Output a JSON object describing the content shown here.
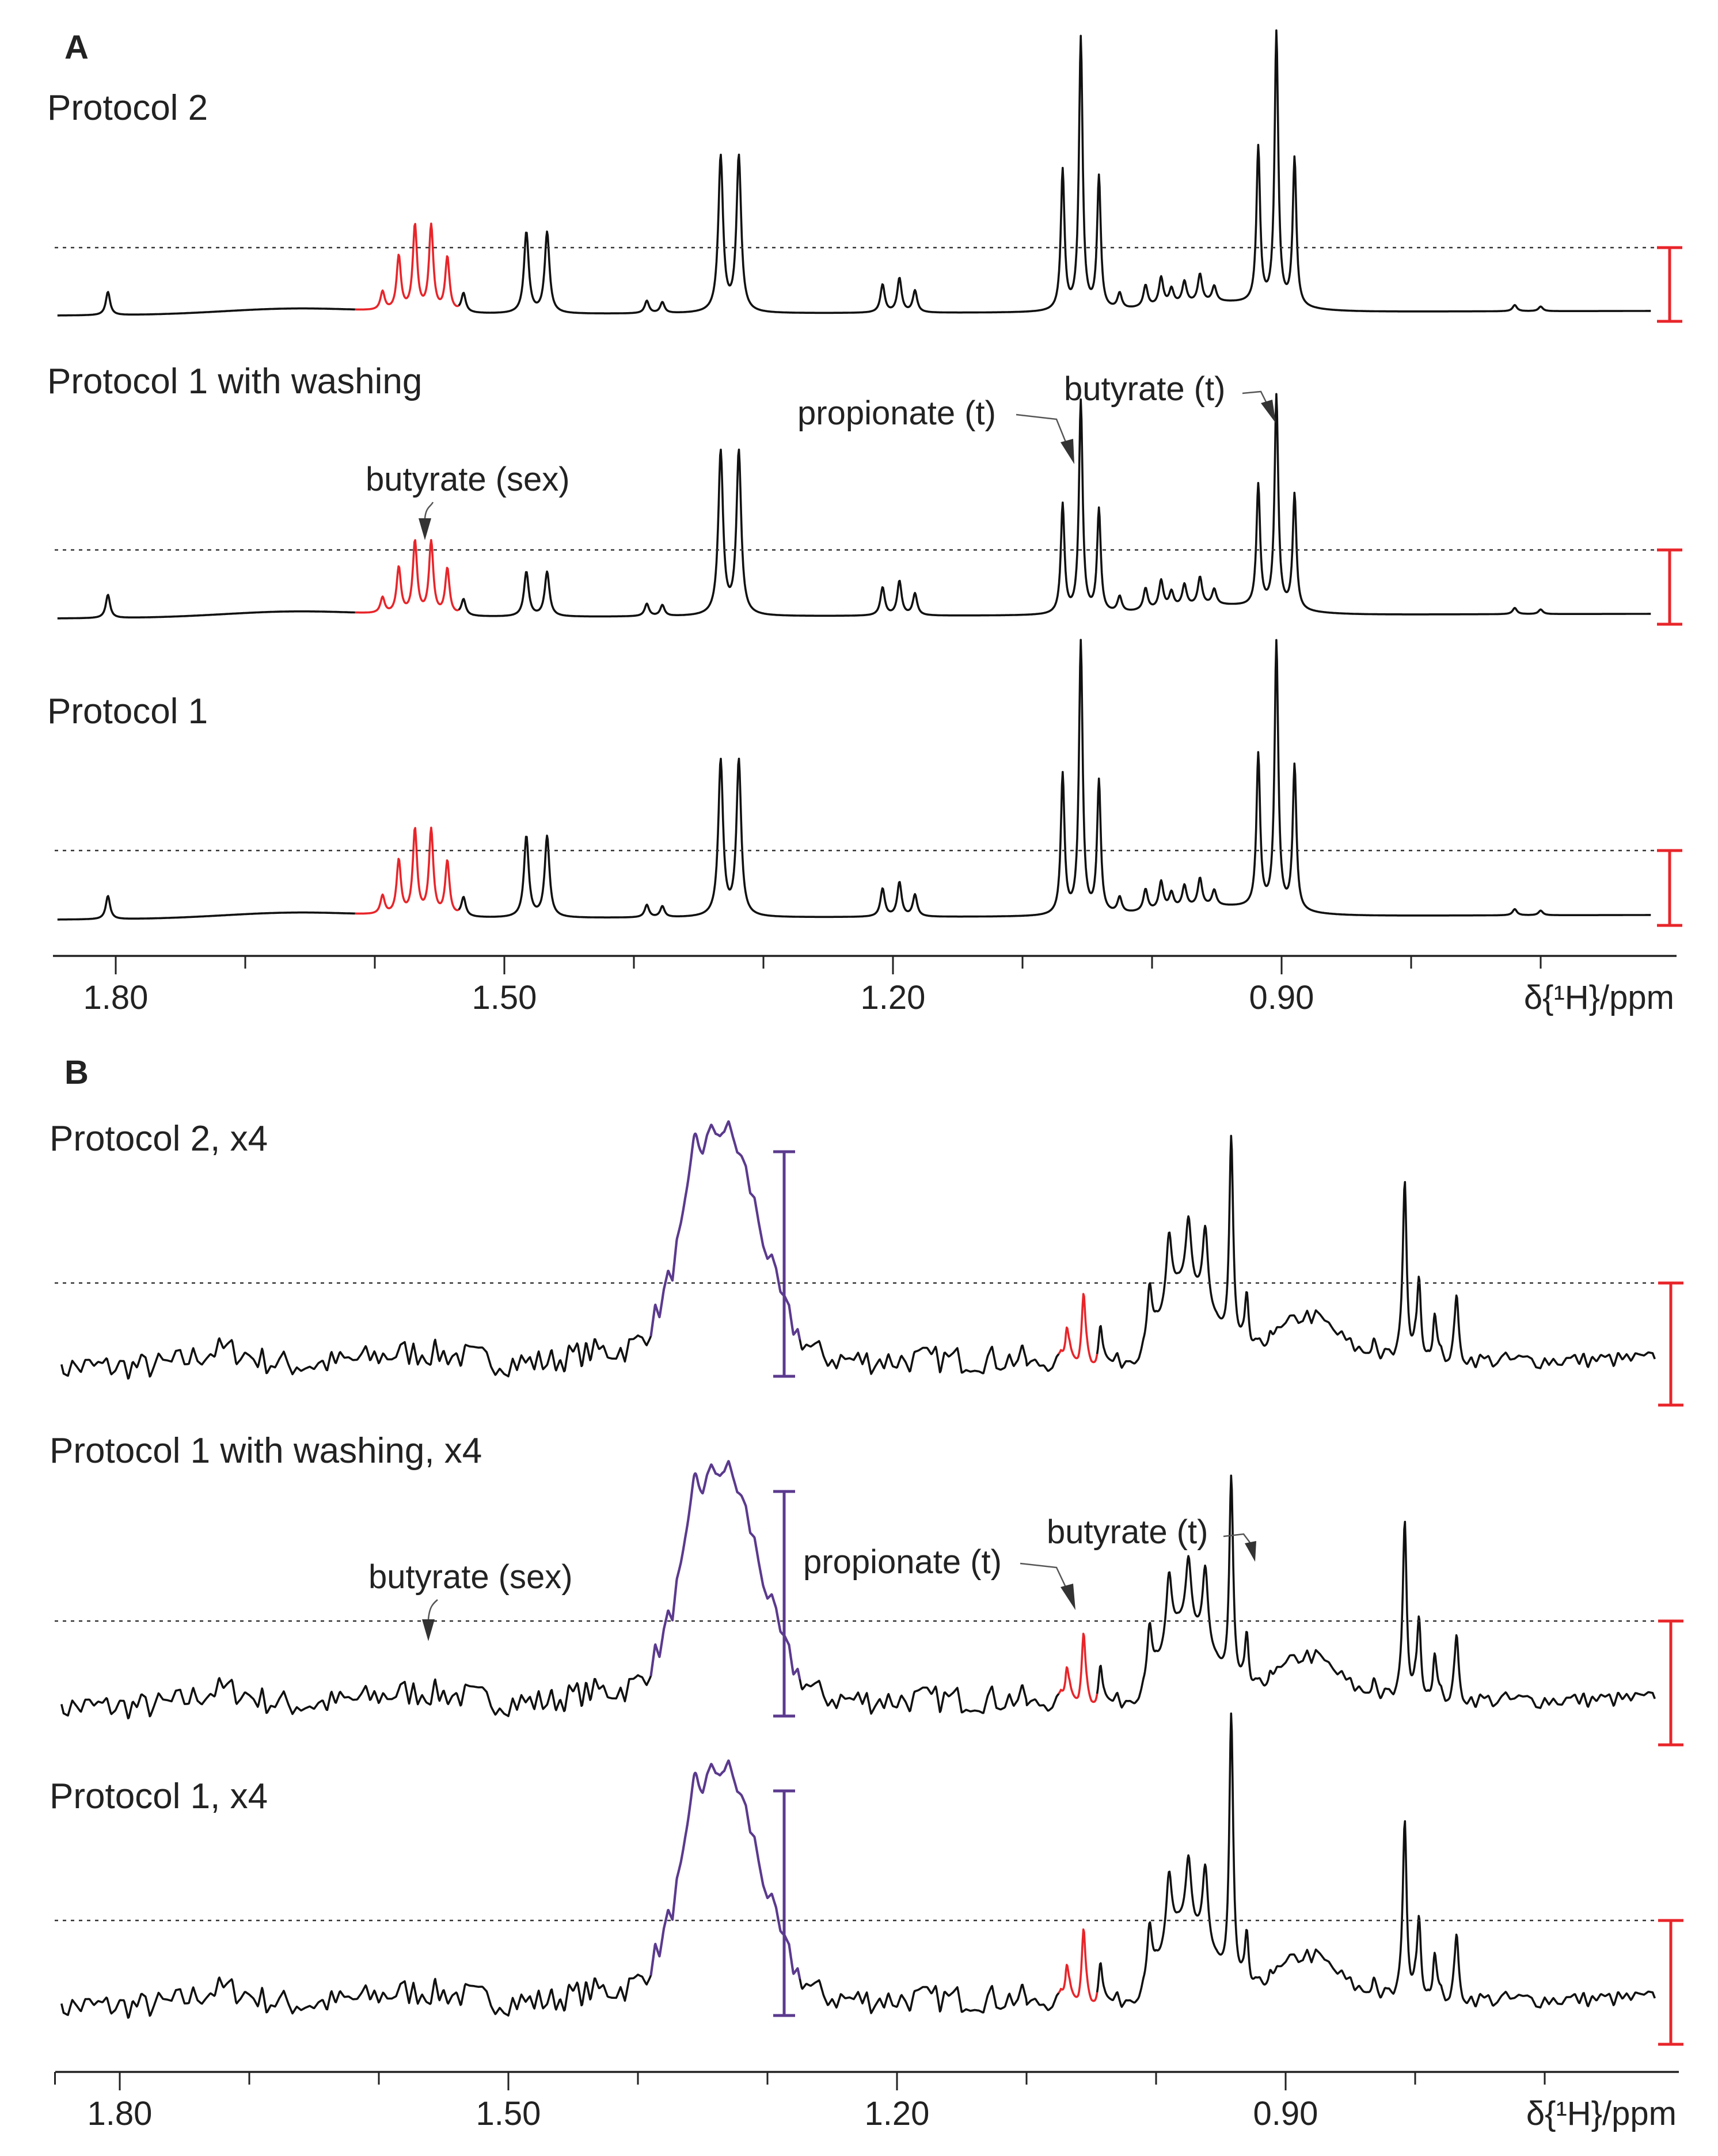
{
  "chart_data": [
    {
      "type": "line",
      "panel": "A",
      "xlabel": "δ{¹H}/ppm",
      "xlim": [
        1.855,
        0.6
      ],
      "x_reversed": true,
      "x_ticks": [
        "1.80",
        "1.50",
        "1.20",
        "0.90"
      ],
      "series": [
        {
          "name": "Protocol 2"
        },
        {
          "name": "Protocol 1 with washing"
        },
        {
          "name": "Protocol 1"
        }
      ],
      "highlight_region_ppm": [
        1.535,
        1.615
      ],
      "annotations": [
        {
          "text": "butyrate (sex)",
          "ppm": 1.574
        },
        {
          "text": "propionate (t)",
          "ppm": 1.05
        },
        {
          "text": "butyrate (t)",
          "ppm": 0.9
        }
      ]
    },
    {
      "type": "line",
      "panel": "B",
      "xlabel": "δ{¹H}/ppm",
      "xlim": [
        1.855,
        0.6
      ],
      "x_reversed": true,
      "x_ticks": [
        "1.80",
        "1.50",
        "1.20",
        "0.90"
      ],
      "series": [
        {
          "name": "Protocol 2, x4"
        },
        {
          "name": "Protocol 1 with washing, x4"
        },
        {
          "name": "Protocol 1, x4"
        }
      ],
      "highlight_region_ppm": [
        1.045,
        1.075
      ],
      "annotations": [
        {
          "text": "butyrate (sex)",
          "ppm": 1.574
        },
        {
          "text": "propionate (t)",
          "ppm": 1.054
        },
        {
          "text": "butyrate (t)",
          "ppm": 0.925
        }
      ]
    }
  ],
  "colors": {
    "trace": "#111111",
    "highlight": "#e8252a",
    "purple": "#5b3a8e",
    "text": "#222222"
  }
}
